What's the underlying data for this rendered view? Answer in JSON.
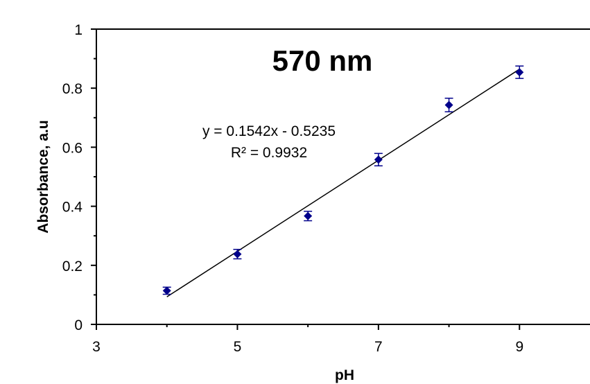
{
  "chart_data": {
    "type": "scatter",
    "title": "570 nm",
    "xlabel": "pH",
    "ylabel": "Absorbance, a.u",
    "xlim": [
      3,
      10
    ],
    "ylim": [
      0,
      1
    ],
    "x_tick_labels": [
      "3",
      "5",
      "7",
      "9"
    ],
    "y_tick_labels": [
      "0",
      "0.2",
      "0.4",
      "0.6",
      "0.8",
      "1"
    ],
    "grid": false,
    "marker": "diamond",
    "point_color": "#00008B",
    "trendline_color": "#000000",
    "points": [
      {
        "x": 4,
        "y": 0.114,
        "err": 0.012
      },
      {
        "x": 5,
        "y": 0.238,
        "err": 0.016
      },
      {
        "x": 6,
        "y": 0.367,
        "err": 0.016
      },
      {
        "x": 7,
        "y": 0.558,
        "err": 0.021
      },
      {
        "x": 8,
        "y": 0.743,
        "err": 0.023
      },
      {
        "x": 9,
        "y": 0.854,
        "err": 0.021
      }
    ],
    "trendline": {
      "slope": 0.1542,
      "intercept": -0.5235,
      "x_range": [
        4,
        9
      ],
      "equation_text": "y = 0.1542x - 0.5235",
      "r2_text": "R² = 0.9932"
    }
  }
}
